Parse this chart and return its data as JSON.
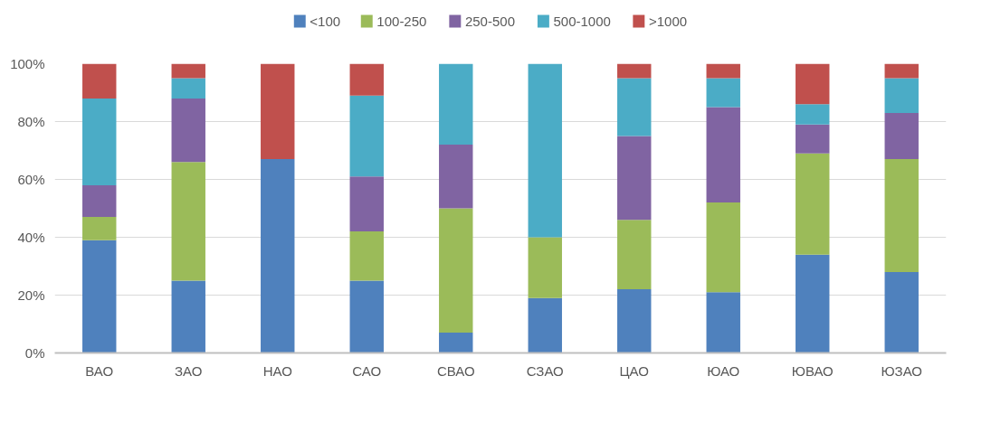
{
  "chart_data": {
    "type": "bar",
    "stacked": true,
    "categories": [
      "ВАО",
      "ЗАО",
      "НАО",
      "САО",
      "СВАО",
      "СЗАО",
      "ЦАО",
      "ЮАО",
      "ЮВАО",
      "ЮЗАО"
    ],
    "series": [
      {
        "name": "<100",
        "color": "#4f81bd",
        "values": [
          39,
          25,
          67,
          25,
          7,
          19,
          22,
          21,
          34,
          28
        ]
      },
      {
        "name": "100-250",
        "color": "#9bbb59",
        "values": [
          8,
          41,
          0,
          17,
          43,
          21,
          24,
          31,
          35,
          39
        ]
      },
      {
        "name": "250-500",
        "color": "#8064a2",
        "values": [
          11,
          22,
          0,
          19,
          22,
          0,
          29,
          33,
          10,
          16
        ]
      },
      {
        "name": "500-1000",
        "color": "#4bacc6",
        "values": [
          30,
          7,
          0,
          28,
          28,
          60,
          20,
          10,
          7,
          12
        ]
      },
      {
        "name": ">1000",
        "color": "#c0504d",
        "values": [
          12,
          5,
          33,
          11,
          0,
          0,
          5,
          5,
          14,
          5
        ]
      }
    ],
    "ylim": [
      0,
      100
    ],
    "yticks": [
      {
        "value": 0,
        "label": "0%"
      },
      {
        "value": 20,
        "label": "20%"
      },
      {
        "value": 40,
        "label": "40%"
      },
      {
        "value": 60,
        "label": "60%"
      },
      {
        "value": 80,
        "label": "80%"
      },
      {
        "value": 100,
        "label": "100%"
      }
    ],
    "grid": "y",
    "legend": "top"
  }
}
